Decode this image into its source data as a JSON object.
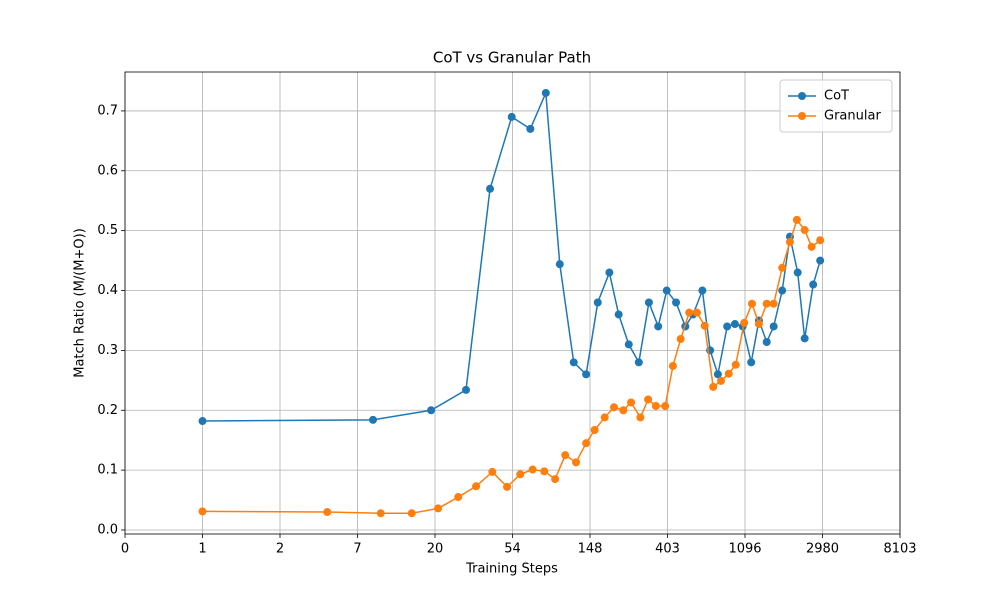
{
  "chart_data": {
    "type": "line",
    "title": "CoT vs Granular Path",
    "x_label": "Training Steps",
    "y_label": "Match Ratio (M/(M+O))",
    "xlim": [
      -1,
      9
    ],
    "ylim": [
      -0.0067,
      0.765
    ],
    "xticks": [
      {
        "value": -1,
        "label": "0"
      },
      {
        "value": 0,
        "label": "1"
      },
      {
        "value": 1,
        "label": "2"
      },
      {
        "value": 2,
        "label": "7"
      },
      {
        "value": 3,
        "label": "20"
      },
      {
        "value": 4,
        "label": "54"
      },
      {
        "value": 5,
        "label": "148"
      },
      {
        "value": 6,
        "label": "403"
      },
      {
        "value": 7,
        "label": "1096"
      },
      {
        "value": 8,
        "label": "2980"
      },
      {
        "value": 9,
        "label": "8103"
      }
    ],
    "yticks": [
      {
        "value": 0,
        "label": "0.0"
      },
      0.1,
      0.2,
      0.3,
      0.4,
      0.5,
      0.6,
      0.7
    ],
    "grid": true,
    "legend": "upper right",
    "series": [
      {
        "name": "CoT",
        "color": "#1f77b4",
        "x": [
          0,
          2.2,
          2.95,
          3.4,
          3.71,
          3.99,
          4.23,
          4.43,
          4.61,
          4.79,
          4.95,
          5.1,
          5.25,
          5.37,
          5.5,
          5.63,
          5.76,
          5.88,
          5.99,
          6.11,
          6.23,
          6.33,
          6.45,
          6.55,
          6.65,
          6.77,
          6.87,
          6.97,
          7.08,
          7.18,
          7.28,
          7.37,
          7.48,
          7.58,
          7.68,
          7.77,
          7.88,
          7.97
        ],
        "values": [
          0.182,
          0.184,
          0.2,
          0.234,
          0.57,
          0.69,
          0.67,
          0.73,
          0.444,
          0.28,
          0.26,
          0.38,
          0.43,
          0.36,
          0.31,
          0.28,
          0.38,
          0.34,
          0.4,
          0.38,
          0.34,
          0.36,
          0.4,
          0.3,
          0.26,
          0.34,
          0.344,
          0.34,
          0.28,
          0.35,
          0.314,
          0.34,
          0.4,
          0.49,
          0.43,
          0.32,
          0.41,
          0.45
        ]
      },
      {
        "name": "Granular",
        "color": "#ff7f0e",
        "x": [
          0,
          1.61,
          2.3,
          2.7,
          3.04,
          3.3,
          3.53,
          3.74,
          3.93,
          4.1,
          4.26,
          4.41,
          4.55,
          4.68,
          4.82,
          4.95,
          5.06,
          5.19,
          5.31,
          5.43,
          5.53,
          5.65,
          5.75,
          5.85,
          5.97,
          6.07,
          6.17,
          6.28,
          6.38,
          6.48,
          6.59,
          6.69,
          6.79,
          6.88,
          6.99,
          7.09,
          7.18,
          7.28,
          7.37,
          7.48,
          7.58,
          7.67,
          7.77,
          7.86,
          7.97
        ],
        "values": [
          0.031,
          0.03,
          0.028,
          0.028,
          0.036,
          0.055,
          0.073,
          0.097,
          0.072,
          0.093,
          0.101,
          0.098,
          0.085,
          0.125,
          0.113,
          0.145,
          0.167,
          0.188,
          0.205,
          0.2,
          0.213,
          0.188,
          0.218,
          0.207,
          0.207,
          0.274,
          0.319,
          0.363,
          0.363,
          0.341,
          0.239,
          0.249,
          0.261,
          0.276,
          0.346,
          0.378,
          0.344,
          0.378,
          0.378,
          0.438,
          0.481,
          0.518,
          0.501,
          0.473,
          0.484
        ]
      }
    ]
  }
}
